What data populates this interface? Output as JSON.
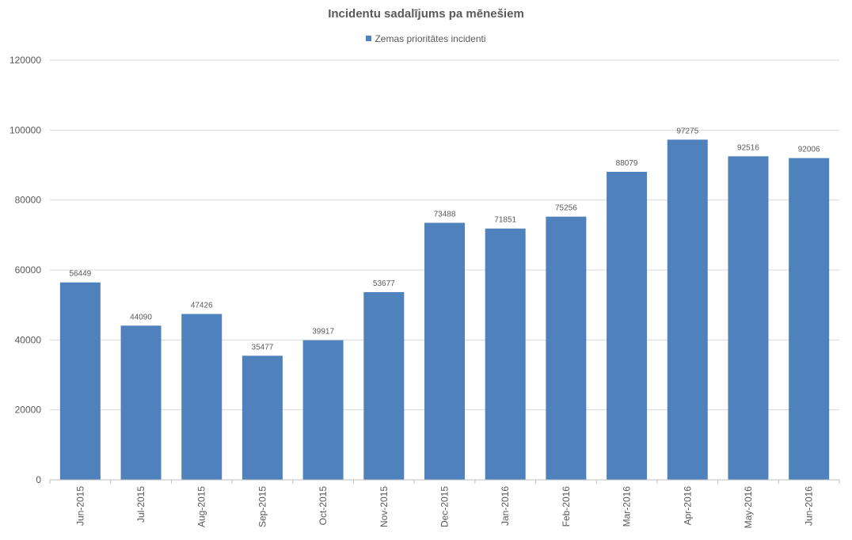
{
  "chart_data": {
    "type": "bar",
    "title": "Incidentu sadalījums pa mēnešiem",
    "xlabel": "",
    "ylabel": "",
    "ylim": [
      0,
      120000
    ],
    "y_ticks": [
      "0",
      "20000",
      "40000",
      "60000",
      "80000",
      "100000",
      "120000"
    ],
    "grid": "horizontal",
    "legend_position": "top",
    "categories": [
      "Jun-2015",
      "Jul-2015",
      "Aug-2015",
      "Sep-2015",
      "Oct-2015",
      "Nov-2015",
      "Dec-2015",
      "Jan-2016",
      "Feb-2016",
      "Mar-2016",
      "Apr-2016",
      "May-2016",
      "Jun-2016"
    ],
    "series": [
      {
        "name": "Zemas prioritātes incidenti",
        "color": "#4f81bd",
        "values": [
          56449,
          44090,
          47426,
          35477,
          39917,
          53677,
          73488,
          71851,
          75256,
          88079,
          97275,
          92516,
          92006
        ]
      }
    ]
  }
}
